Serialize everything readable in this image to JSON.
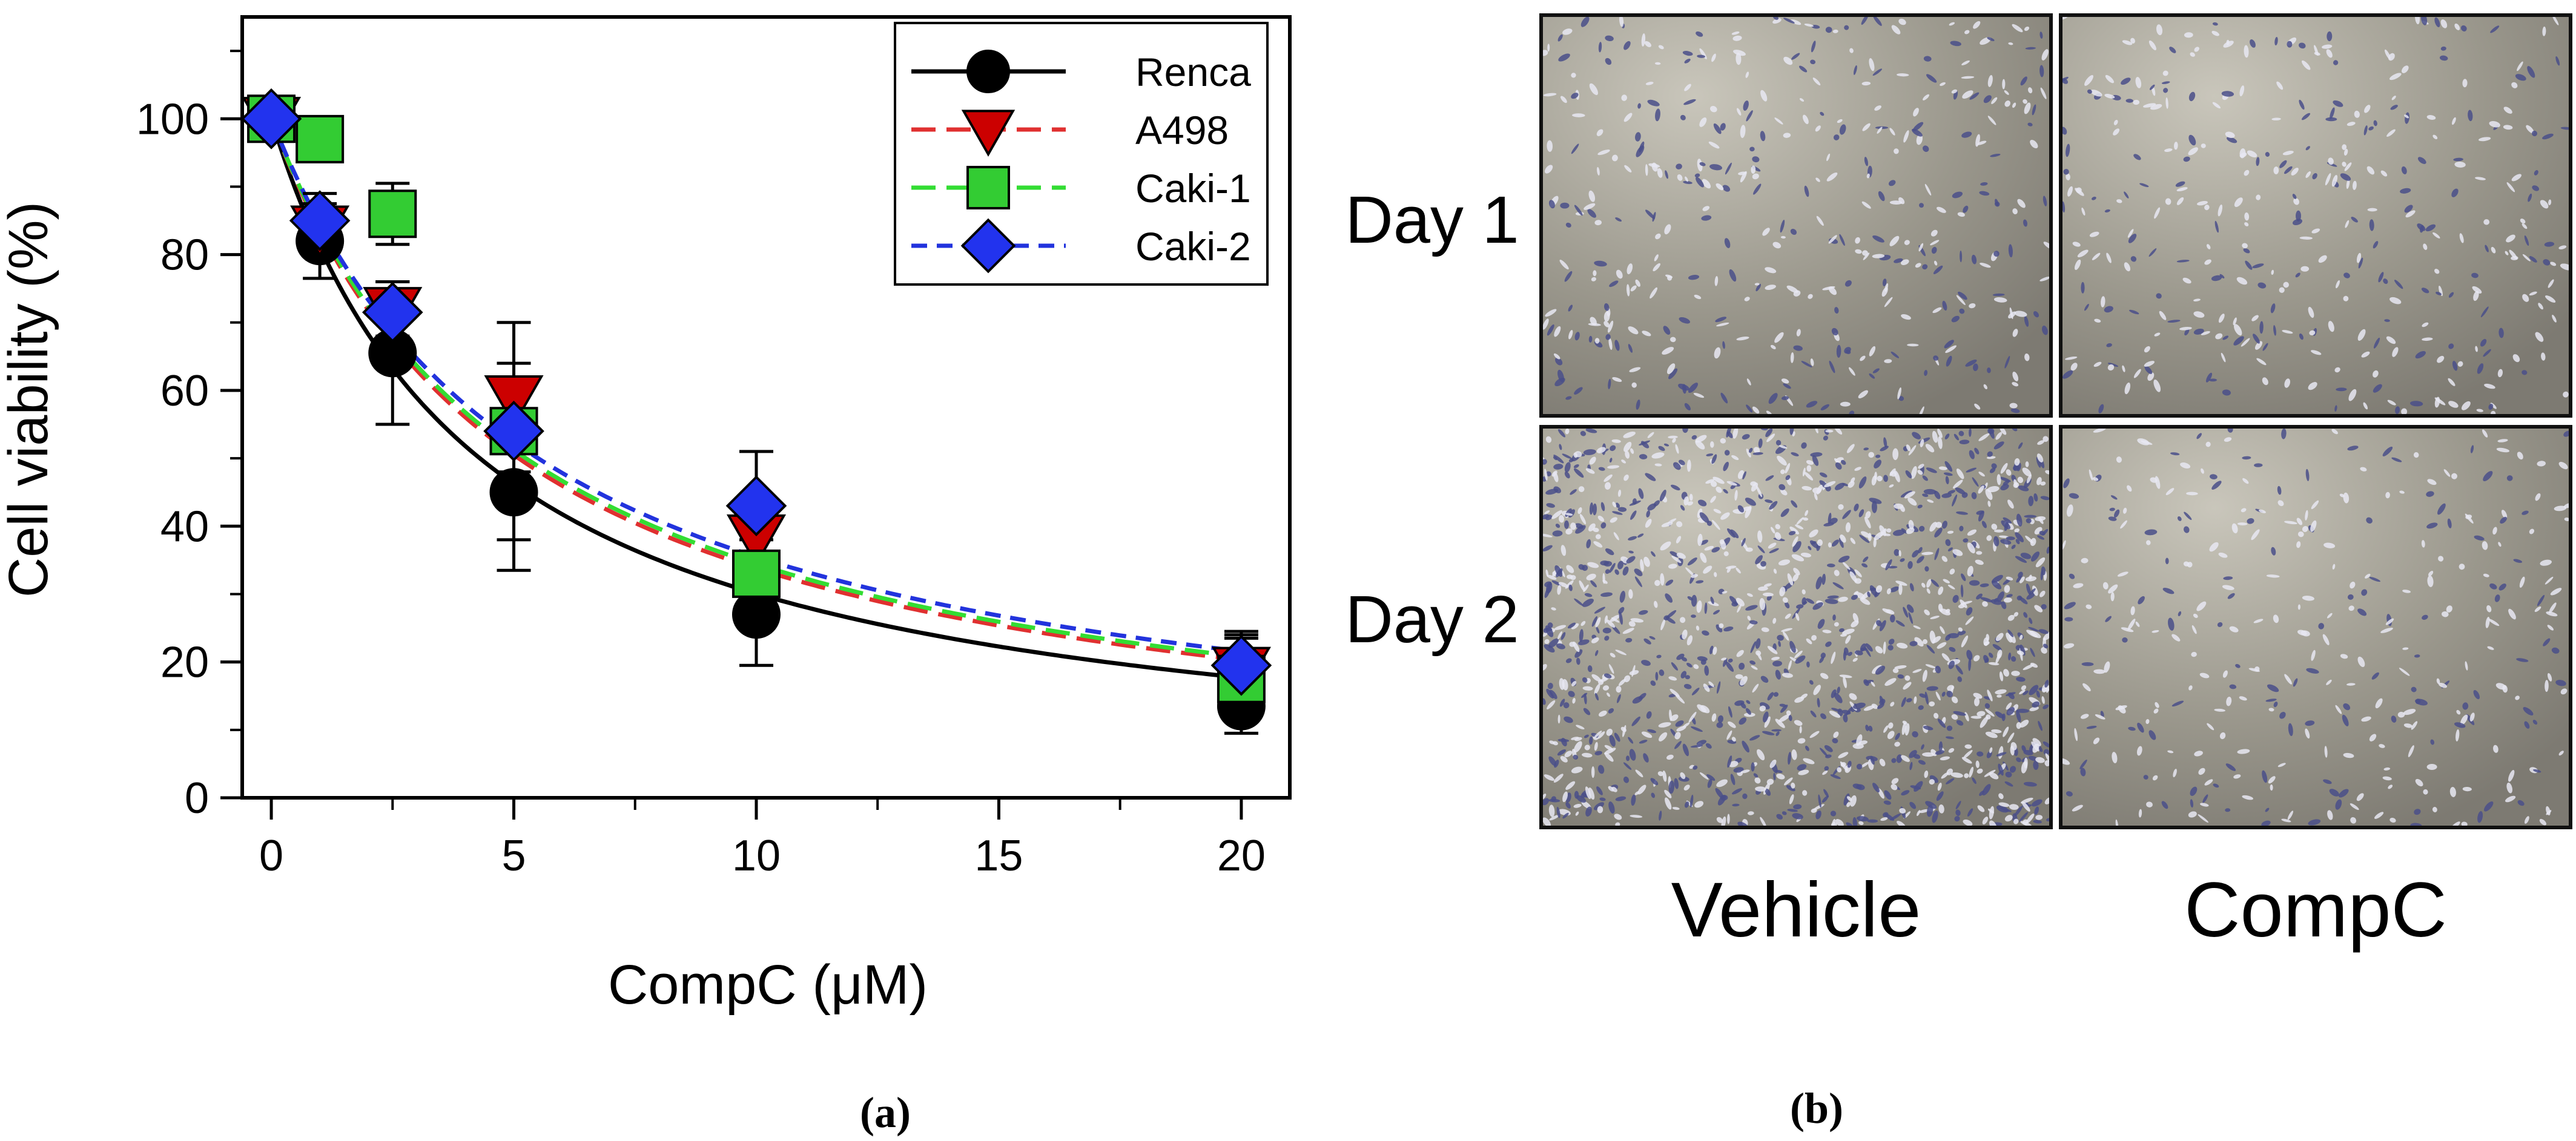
{
  "chart_data": {
    "type": "scatter",
    "title": "",
    "xlabel": "CompC (μM)",
    "ylabel": "Cell viability (%)",
    "xlim": [
      -0.6,
      21
    ],
    "ylim": [
      0,
      115
    ],
    "xticks": [
      0,
      5,
      10,
      15,
      20
    ],
    "yticks": [
      0,
      20,
      40,
      60,
      80,
      100
    ],
    "legend_position": "top-right",
    "series": [
      {
        "name": "Renca",
        "marker": "circle",
        "color": "#000000",
        "line_color": "#000000",
        "dash": "solid",
        "x": [
          0,
          1,
          2.5,
          5,
          10,
          20
        ],
        "y": [
          100,
          82,
          65.5,
          45,
          27,
          13.5
        ],
        "err": [
          0,
          5.5,
          10.5,
          11.5,
          7.5,
          4
        ],
        "ic50": 4.3
      },
      {
        "name": "A498",
        "marker": "triangle-down",
        "color": "#cc0000",
        "line_color": "#e03030",
        "dash": "long",
        "x": [
          0,
          1,
          2.5,
          5,
          10,
          20
        ],
        "y": [
          100,
          84,
          72,
          59,
          38.5,
          19
        ],
        "err": [
          0,
          3,
          4,
          5,
          4,
          5
        ],
        "ic50": 5.1
      },
      {
        "name": "Caki-1",
        "marker": "square",
        "color": "#33cc33",
        "line_color": "#33dd33",
        "dash": "long",
        "x": [
          0,
          1,
          2.5,
          5,
          10,
          20
        ],
        "y": [
          100,
          97,
          86,
          54,
          33,
          17.5
        ],
        "err": [
          0,
          2,
          4.5,
          16,
          5,
          6
        ],
        "ic50": 5.25
      },
      {
        "name": "Caki-2",
        "marker": "diamond",
        "color": "#2233ee",
        "line_color": "#2233dd",
        "dash": "short",
        "x": [
          0,
          1,
          2.5,
          5,
          10,
          20
        ],
        "y": [
          100,
          85,
          71.5,
          54,
          43,
          19.5
        ],
        "err": [
          0,
          4,
          4.5,
          6,
          8,
          5
        ],
        "ic50": 5.5
      }
    ]
  },
  "panel_b": {
    "row_labels": [
      "Day 1",
      "Day 2"
    ],
    "col_labels": [
      "Vehicle",
      "CompC"
    ]
  },
  "panel_labels": {
    "a": "(a)",
    "b": "(b)"
  }
}
